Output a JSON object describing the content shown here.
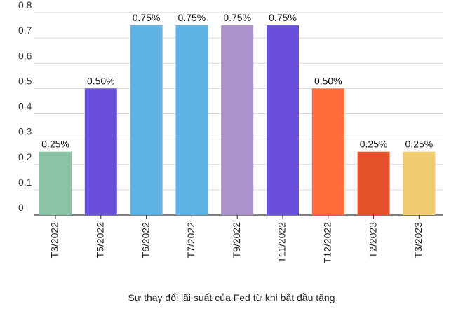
{
  "chart_data": {
    "type": "bar",
    "title": "",
    "caption": "Sự thay đổi lãi suất của Fed từ khi bắt đầu tăng",
    "xlabel": "",
    "ylabel": "",
    "ylim": [
      0,
      0.8
    ],
    "yticks": [
      "0",
      "0.1",
      "0.2",
      "0.3",
      "0.4",
      "0.5",
      "0.6",
      "0.7",
      "0.8"
    ],
    "grid": true,
    "categories": [
      "T3/2022",
      "T5/2022",
      "T6/2022",
      "T7/2022",
      "T9/2022",
      "T11/2022",
      "T12/2022",
      "T2/2023",
      "T3/2023"
    ],
    "values": [
      0.25,
      0.5,
      0.75,
      0.75,
      0.75,
      0.75,
      0.5,
      0.25,
      0.25
    ],
    "data_labels": [
      "0.25%",
      "0.50%",
      "0.75%",
      "0.75%",
      "0.75%",
      "0.75%",
      "0.50%",
      "0.25%",
      "0.25%"
    ],
    "colors": [
      "#8bc4a5",
      "#6a4fdc",
      "#5eb3e4",
      "#5eb3e4",
      "#ad91cb",
      "#6a4fdc",
      "#ff6b3b",
      "#e5512b",
      "#eecb6c"
    ]
  }
}
